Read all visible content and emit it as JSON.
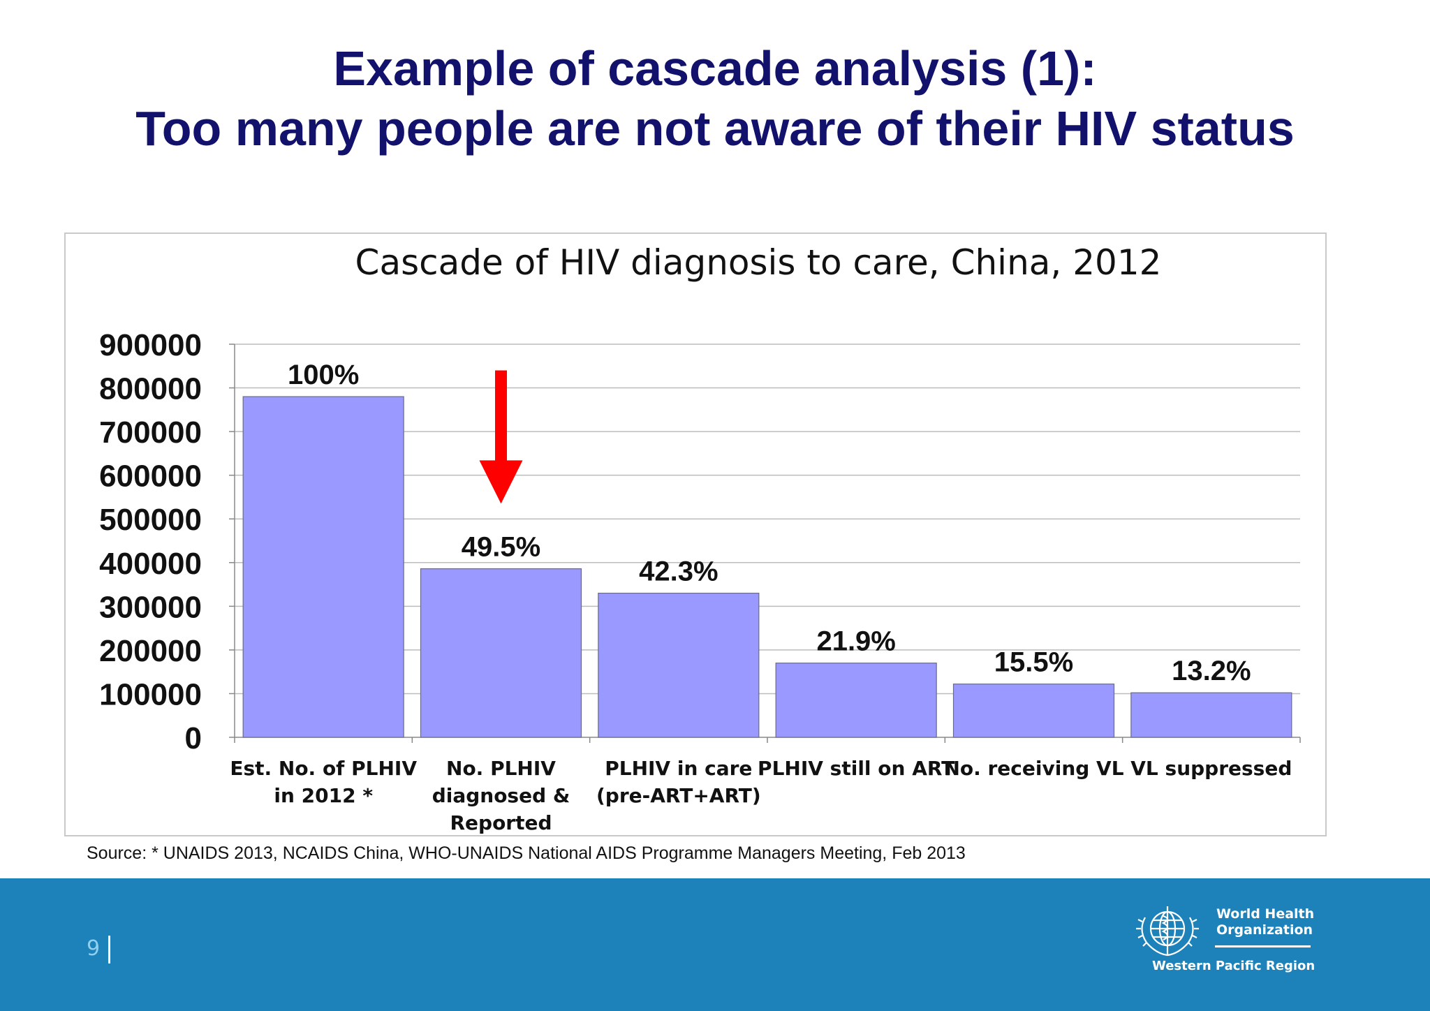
{
  "slide": {
    "title_line1": "Example of cascade analysis (1):",
    "title_line2": "Too many people are not aware of their HIV status",
    "source": "Source: * UNAIDS 2013, NCAIDS China, WHO-UNAIDS National AIDS Programme Managers Meeting, Feb 2013",
    "page_number": "9"
  },
  "footer": {
    "org_line1": "World Health",
    "org_line2": "Organization",
    "region": "Western Pacific Region",
    "background_color": "#1d82b9"
  },
  "chart_data": {
    "type": "bar",
    "title": "Cascade of HIV diagnosis to care, China, 2012",
    "xlabel": "",
    "ylabel": "",
    "ylim": [
      0,
      900000
    ],
    "yticks": [
      0,
      100000,
      200000,
      300000,
      400000,
      500000,
      600000,
      700000,
      800000,
      900000
    ],
    "ytick_labels": [
      "0",
      "100000",
      "200000",
      "300000",
      "400000",
      "500000",
      "600000",
      "700000",
      "800000",
      "900000"
    ],
    "grid": true,
    "bar_color": "#9999ff",
    "categories": [
      [
        "Est. No. of PLHIV",
        "in 2012 *"
      ],
      [
        "No. PLHIV",
        "diagnosed &",
        "Reported"
      ],
      [
        "PLHIV in care",
        "(pre-ART+ART)"
      ],
      [
        "PLHIV still on ART"
      ],
      [
        "No. receiving VL"
      ],
      [
        "VL suppressed"
      ]
    ],
    "values": [
      780000,
      386000,
      330000,
      170000,
      122000,
      102000
    ],
    "data_labels": [
      "100%",
      "49.5%",
      "42.3%",
      "21.9%",
      "15.5%",
      "13.2%"
    ],
    "annotations": [
      {
        "type": "arrow",
        "direction": "down",
        "category_index": 1,
        "color": "#ff0000",
        "from_value": 840000,
        "to_value": 535000
      }
    ]
  }
}
